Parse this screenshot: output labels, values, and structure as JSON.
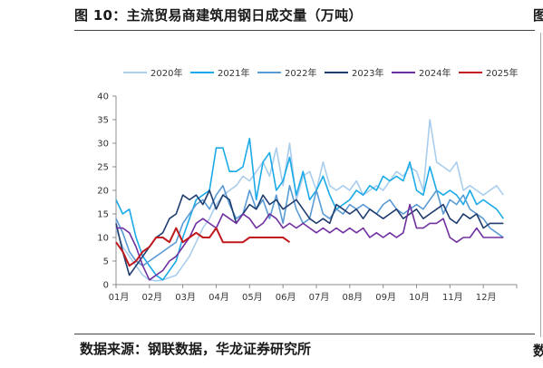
{
  "header": {
    "title": "图 10：主流贸易商建筑用钢日成交量（万吨）",
    "edge_glyph": "图"
  },
  "footer": {
    "source": "数据来源：钢联数据，华龙证券研究所",
    "edge_glyph": "数"
  },
  "chart_data": {
    "type": "line",
    "title": "",
    "xlabel": "",
    "ylabel": "",
    "ylim": [
      0,
      40
    ],
    "yticks": [
      0,
      5,
      10,
      15,
      20,
      25,
      30,
      35,
      40
    ],
    "xlim": [
      0,
      12
    ],
    "month_ticks": [
      "01月",
      "02月",
      "03月",
      "04月",
      "05月",
      "06月",
      "07月",
      "08月",
      "09月",
      "10月",
      "11月",
      "12月"
    ],
    "legend_position": "top",
    "grid": false,
    "series": [
      {
        "name": "2020年",
        "color": "#a9cdec",
        "points": [
          [
            0.0,
            12
          ],
          [
            0.2,
            8
          ],
          [
            0.4,
            6
          ],
          [
            0.6,
            4
          ],
          [
            0.8,
            2
          ],
          [
            1.0,
            1
          ],
          [
            1.2,
            0.8
          ],
          [
            1.4,
            1
          ],
          [
            1.6,
            1.5
          ],
          [
            1.8,
            2
          ],
          [
            2.0,
            4
          ],
          [
            2.2,
            6
          ],
          [
            2.4,
            9
          ],
          [
            2.6,
            12
          ],
          [
            2.8,
            14
          ],
          [
            3.0,
            17
          ],
          [
            3.2,
            19
          ],
          [
            3.4,
            20
          ],
          [
            3.6,
            21
          ],
          [
            3.8,
            23
          ],
          [
            4.0,
            22
          ],
          [
            4.2,
            24
          ],
          [
            4.4,
            26
          ],
          [
            4.6,
            23
          ],
          [
            4.8,
            29
          ],
          [
            5.0,
            21
          ],
          [
            5.2,
            30
          ],
          [
            5.4,
            18
          ],
          [
            5.6,
            23
          ],
          [
            5.8,
            24
          ],
          [
            6.0,
            20
          ],
          [
            6.2,
            26
          ],
          [
            6.4,
            21
          ],
          [
            6.6,
            20
          ],
          [
            6.8,
            21
          ],
          [
            7.0,
            20
          ],
          [
            7.2,
            22
          ],
          [
            7.4,
            19
          ],
          [
            7.6,
            20
          ],
          [
            7.8,
            21
          ],
          [
            8.0,
            20
          ],
          [
            8.2,
            22
          ],
          [
            8.4,
            24
          ],
          [
            8.6,
            23
          ],
          [
            8.8,
            25
          ],
          [
            9.0,
            24
          ],
          [
            9.2,
            20
          ],
          [
            9.4,
            35
          ],
          [
            9.6,
            26
          ],
          [
            9.8,
            25
          ],
          [
            10.0,
            24
          ],
          [
            10.2,
            26
          ],
          [
            10.4,
            20
          ],
          [
            10.6,
            21
          ],
          [
            10.8,
            20
          ],
          [
            11.0,
            19
          ],
          [
            11.2,
            20
          ],
          [
            11.4,
            21
          ],
          [
            11.6,
            19
          ]
        ]
      },
      {
        "name": "2021年",
        "color": "#1aaae8",
        "points": [
          [
            0.0,
            18
          ],
          [
            0.2,
            15
          ],
          [
            0.4,
            16
          ],
          [
            0.6,
            10
          ],
          [
            0.8,
            6
          ],
          [
            1.0,
            4
          ],
          [
            1.2,
            2
          ],
          [
            1.4,
            1
          ],
          [
            1.6,
            3
          ],
          [
            1.8,
            5
          ],
          [
            2.0,
            10
          ],
          [
            2.2,
            14
          ],
          [
            2.4,
            18
          ],
          [
            2.6,
            19
          ],
          [
            2.8,
            20
          ],
          [
            3.0,
            29
          ],
          [
            3.2,
            29
          ],
          [
            3.4,
            24
          ],
          [
            3.6,
            24
          ],
          [
            3.8,
            25
          ],
          [
            4.0,
            31
          ],
          [
            4.2,
            18
          ],
          [
            4.4,
            26
          ],
          [
            4.6,
            28
          ],
          [
            4.8,
            20
          ],
          [
            5.0,
            22
          ],
          [
            5.2,
            27
          ],
          [
            5.4,
            19
          ],
          [
            5.6,
            24
          ],
          [
            5.8,
            18
          ],
          [
            6.0,
            20
          ],
          [
            6.2,
            23
          ],
          [
            6.4,
            19
          ],
          [
            6.6,
            16
          ],
          [
            6.8,
            17
          ],
          [
            7.0,
            18
          ],
          [
            7.2,
            20
          ],
          [
            7.4,
            19
          ],
          [
            7.6,
            21
          ],
          [
            7.8,
            20
          ],
          [
            8.0,
            23
          ],
          [
            8.2,
            22
          ],
          [
            8.4,
            23
          ],
          [
            8.6,
            22
          ],
          [
            8.8,
            26
          ],
          [
            9.0,
            20
          ],
          [
            9.2,
            19
          ],
          [
            9.4,
            25
          ],
          [
            9.6,
            20
          ],
          [
            9.8,
            19
          ],
          [
            10.0,
            20
          ],
          [
            10.2,
            19
          ],
          [
            10.4,
            17
          ],
          [
            10.6,
            20
          ],
          [
            10.8,
            17
          ],
          [
            11.0,
            18
          ],
          [
            11.2,
            17
          ],
          [
            11.4,
            16
          ],
          [
            11.6,
            14
          ]
        ]
      },
      {
        "name": "2022年",
        "color": "#5b9bd5",
        "points": [
          [
            0.0,
            14
          ],
          [
            0.2,
            11
          ],
          [
            0.4,
            7
          ],
          [
            0.6,
            5
          ],
          [
            0.8,
            4
          ],
          [
            1.0,
            5
          ],
          [
            1.2,
            6
          ],
          [
            1.4,
            7
          ],
          [
            1.6,
            8
          ],
          [
            1.8,
            9
          ],
          [
            2.0,
            13
          ],
          [
            2.2,
            15
          ],
          [
            2.4,
            17
          ],
          [
            2.6,
            18
          ],
          [
            2.8,
            16
          ],
          [
            3.0,
            19
          ],
          [
            3.2,
            21
          ],
          [
            3.4,
            17
          ],
          [
            3.6,
            14
          ],
          [
            3.8,
            15
          ],
          [
            4.0,
            20
          ],
          [
            4.2,
            16
          ],
          [
            4.4,
            18
          ],
          [
            4.6,
            14
          ],
          [
            4.8,
            19
          ],
          [
            5.0,
            13
          ],
          [
            5.2,
            21
          ],
          [
            5.4,
            16
          ],
          [
            5.6,
            13
          ],
          [
            5.8,
            14
          ],
          [
            6.0,
            20
          ],
          [
            6.2,
            15
          ],
          [
            6.4,
            14
          ],
          [
            6.6,
            16
          ],
          [
            6.8,
            15
          ],
          [
            7.0,
            17
          ],
          [
            7.2,
            16
          ],
          [
            7.4,
            17
          ],
          [
            7.6,
            16
          ],
          [
            7.8,
            15
          ],
          [
            8.0,
            17
          ],
          [
            8.2,
            18
          ],
          [
            8.4,
            16
          ],
          [
            8.6,
            15
          ],
          [
            8.8,
            16
          ],
          [
            9.0,
            17
          ],
          [
            9.2,
            16
          ],
          [
            9.4,
            18
          ],
          [
            9.6,
            20
          ],
          [
            9.8,
            15
          ],
          [
            10.0,
            18
          ],
          [
            10.2,
            17
          ],
          [
            10.4,
            19
          ],
          [
            10.6,
            16
          ],
          [
            10.8,
            15
          ],
          [
            11.0,
            14
          ],
          [
            11.2,
            12
          ],
          [
            11.4,
            11
          ],
          [
            11.6,
            10
          ]
        ]
      },
      {
        "name": "2023年",
        "color": "#1f3d6e",
        "points": [
          [
            0.0,
            13
          ],
          [
            0.2,
            7
          ],
          [
            0.4,
            2
          ],
          [
            0.6,
            4
          ],
          [
            0.8,
            6
          ],
          [
            1.0,
            8
          ],
          [
            1.2,
            10
          ],
          [
            1.4,
            11
          ],
          [
            1.6,
            14
          ],
          [
            1.8,
            15
          ],
          [
            2.0,
            19
          ],
          [
            2.2,
            18
          ],
          [
            2.4,
            19
          ],
          [
            2.6,
            17
          ],
          [
            2.8,
            20
          ],
          [
            3.0,
            16
          ],
          [
            3.2,
            19
          ],
          [
            3.4,
            18
          ],
          [
            3.6,
            13
          ],
          [
            3.8,
            15
          ],
          [
            4.0,
            17
          ],
          [
            4.2,
            16
          ],
          [
            4.4,
            19
          ],
          [
            4.6,
            17
          ],
          [
            4.8,
            18
          ],
          [
            5.0,
            16
          ],
          [
            5.2,
            17
          ],
          [
            5.4,
            18
          ],
          [
            5.6,
            16
          ],
          [
            5.8,
            14
          ],
          [
            6.0,
            13
          ],
          [
            6.2,
            14
          ],
          [
            6.4,
            13
          ],
          [
            6.6,
            17
          ],
          [
            6.8,
            16
          ],
          [
            7.0,
            15
          ],
          [
            7.2,
            16
          ],
          [
            7.4,
            14
          ],
          [
            7.6,
            16
          ],
          [
            7.8,
            15
          ],
          [
            8.0,
            14
          ],
          [
            8.2,
            15
          ],
          [
            8.4,
            16
          ],
          [
            8.6,
            14
          ],
          [
            8.8,
            15
          ],
          [
            9.0,
            16
          ],
          [
            9.2,
            14
          ],
          [
            9.4,
            15
          ],
          [
            9.6,
            16
          ],
          [
            9.8,
            17
          ],
          [
            10.0,
            14
          ],
          [
            10.2,
            13
          ],
          [
            10.4,
            15
          ],
          [
            10.6,
            14
          ],
          [
            10.8,
            15
          ],
          [
            11.0,
            12
          ],
          [
            11.2,
            13
          ],
          [
            11.4,
            13
          ],
          [
            11.6,
            13
          ]
        ]
      },
      {
        "name": "2024年",
        "color": "#7030a0",
        "points": [
          [
            0.0,
            12
          ],
          [
            0.2,
            12
          ],
          [
            0.4,
            11
          ],
          [
            0.6,
            8
          ],
          [
            0.8,
            4
          ],
          [
            1.0,
            1
          ],
          [
            1.2,
            2
          ],
          [
            1.4,
            3
          ],
          [
            1.6,
            5
          ],
          [
            1.8,
            6
          ],
          [
            2.0,
            8
          ],
          [
            2.2,
            10
          ],
          [
            2.4,
            13
          ],
          [
            2.6,
            14
          ],
          [
            2.8,
            13
          ],
          [
            3.0,
            12
          ],
          [
            3.2,
            15
          ],
          [
            3.4,
            14
          ],
          [
            3.6,
            13
          ],
          [
            3.8,
            15
          ],
          [
            4.0,
            14
          ],
          [
            4.2,
            12
          ],
          [
            4.4,
            13
          ],
          [
            4.6,
            15
          ],
          [
            4.8,
            14
          ],
          [
            5.0,
            12
          ],
          [
            5.2,
            13
          ],
          [
            5.4,
            12
          ],
          [
            5.6,
            13
          ],
          [
            5.8,
            12
          ],
          [
            6.0,
            11
          ],
          [
            6.2,
            12
          ],
          [
            6.4,
            11
          ],
          [
            6.6,
            12
          ],
          [
            6.8,
            11
          ],
          [
            7.0,
            12
          ],
          [
            7.2,
            11
          ],
          [
            7.4,
            12
          ],
          [
            7.6,
            10
          ],
          [
            7.8,
            11
          ],
          [
            8.0,
            10
          ],
          [
            8.2,
            11
          ],
          [
            8.4,
            10
          ],
          [
            8.6,
            11
          ],
          [
            8.8,
            17
          ],
          [
            9.0,
            12
          ],
          [
            9.2,
            12
          ],
          [
            9.4,
            13
          ],
          [
            9.6,
            13
          ],
          [
            9.8,
            14
          ],
          [
            10.0,
            10
          ],
          [
            10.2,
            9
          ],
          [
            10.4,
            10
          ],
          [
            10.6,
            10
          ],
          [
            10.8,
            12
          ],
          [
            11.0,
            10
          ],
          [
            11.2,
            10
          ],
          [
            11.4,
            10
          ],
          [
            11.6,
            10
          ]
        ]
      },
      {
        "name": "2025年",
        "color": "#c0191f",
        "points": [
          [
            0.0,
            9
          ],
          [
            0.2,
            7
          ],
          [
            0.4,
            4
          ],
          [
            0.6,
            5
          ],
          [
            0.8,
            7
          ],
          [
            1.0,
            8
          ],
          [
            1.2,
            10
          ],
          [
            1.4,
            10
          ],
          [
            1.6,
            9
          ],
          [
            1.8,
            12
          ],
          [
            2.0,
            9
          ],
          [
            2.2,
            10
          ],
          [
            2.4,
            11
          ],
          [
            2.6,
            10
          ],
          [
            2.8,
            10
          ],
          [
            3.0,
            12
          ],
          [
            3.2,
            9
          ],
          [
            3.4,
            9
          ],
          [
            3.6,
            9
          ],
          [
            3.8,
            9
          ],
          [
            4.0,
            10
          ],
          [
            4.2,
            10
          ],
          [
            4.4,
            10
          ],
          [
            4.6,
            10
          ],
          [
            4.8,
            10
          ],
          [
            5.0,
            10
          ],
          [
            5.2,
            9
          ]
        ]
      }
    ]
  }
}
